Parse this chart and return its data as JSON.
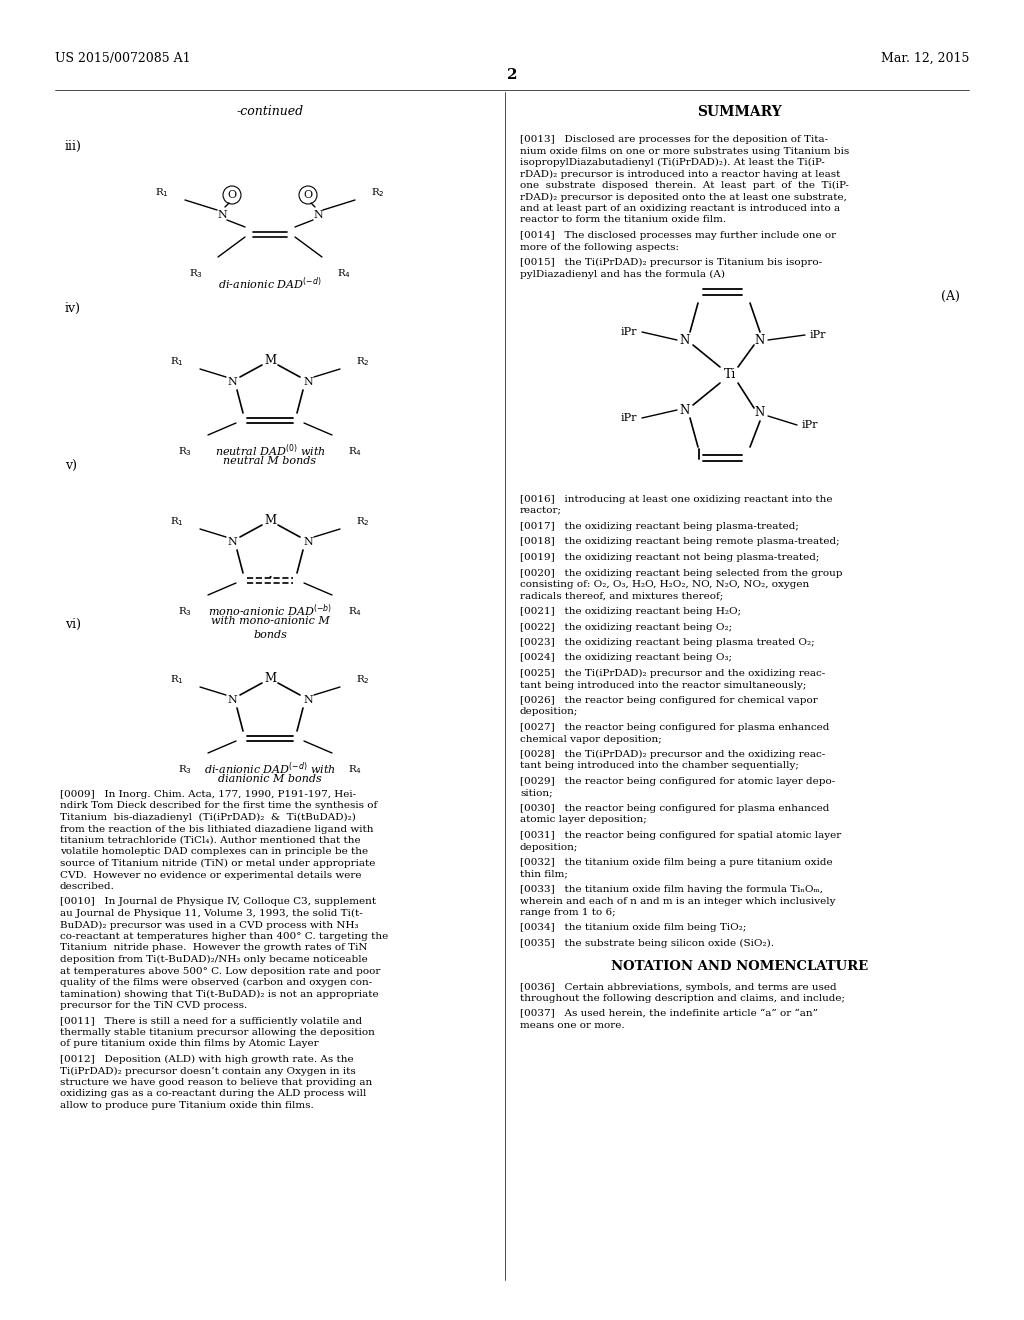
{
  "bg_color": "#ffffff",
  "header_left": "US 2015/0072085 A1",
  "header_right": "Mar. 12, 2015",
  "page_number": "2",
  "continued_text": "-continued",
  "summary_title": "SUMMARY",
  "notation_title": "NOTATION AND NOMENCLATURE"
}
